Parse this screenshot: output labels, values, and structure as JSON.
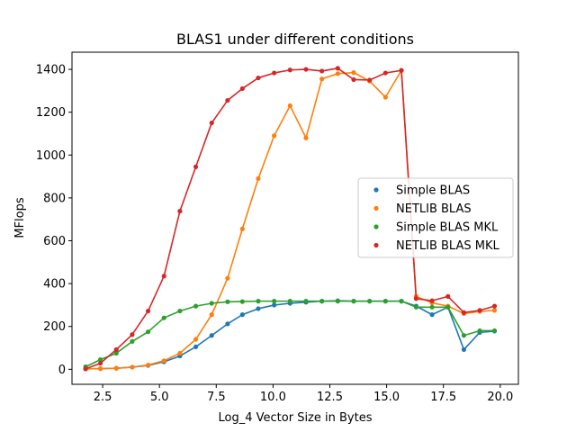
{
  "chart_data": {
    "type": "line",
    "title": "BLAS1 under different conditions",
    "xlabel": "Log_4 Vector Size in Bytes",
    "ylabel": "MFlops",
    "xlim": [
      1.15,
      20.8
    ],
    "ylim": [
      -70,
      1480
    ],
    "xticks": [
      2.5,
      5.0,
      7.5,
      10.0,
      12.5,
      15.0,
      17.5,
      20.0
    ],
    "xtick_labels": [
      "2.5",
      "5.0",
      "7.5",
      "10.0",
      "12.5",
      "15.0",
      "17.5",
      "20.0"
    ],
    "yticks": [
      0,
      200,
      400,
      600,
      800,
      1000,
      1200,
      1400
    ],
    "ytick_labels": [
      "0",
      "200",
      "400",
      "600",
      "800",
      "1000",
      "1200",
      "1400"
    ],
    "grid": false,
    "legend_position": "center-right",
    "x": [
      1.75,
      2.4,
      3.1,
      3.8,
      4.5,
      5.2,
      5.9,
      6.6,
      7.3,
      8.0,
      8.65,
      9.35,
      10.05,
      10.75,
      11.45,
      12.15,
      12.85,
      13.55,
      14.25,
      14.95,
      15.65,
      16.3,
      17.0,
      17.7,
      18.4,
      19.1,
      19.75
    ],
    "series": [
      {
        "name": "Simple BLAS",
        "color": "#1f77b4",
        "values": [
          2,
          3,
          5,
          10,
          18,
          35,
          62,
          105,
          158,
          212,
          255,
          283,
          300,
          308,
          313,
          318,
          320,
          318,
          318,
          318,
          318,
          295,
          255,
          290,
          92,
          172,
          178
        ]
      },
      {
        "name": "NETLIB BLAS",
        "color": "#ff7f0e",
        "values": [
          2,
          3,
          5,
          10,
          20,
          40,
          75,
          140,
          255,
          425,
          655,
          890,
          1090,
          1230,
          1080,
          1355,
          1380,
          1385,
          1345,
          1270,
          1395,
          340,
          310,
          295,
          260,
          270,
          275
        ]
      },
      {
        "name": "Simple BLAS MKL",
        "color": "#2ca02c",
        "values": [
          12,
          45,
          75,
          130,
          175,
          240,
          272,
          295,
          308,
          315,
          316,
          318,
          318,
          318,
          318,
          318,
          318,
          318,
          318,
          318,
          318,
          290,
          290,
          290,
          158,
          180,
          180
        ]
      },
      {
        "name": "NETLIB BLAS MKL",
        "color": "#d62728",
        "values": [
          2,
          28,
          92,
          162,
          272,
          435,
          738,
          945,
          1150,
          1255,
          1310,
          1360,
          1383,
          1397,
          1400,
          1392,
          1405,
          1352,
          1350,
          1383,
          1395,
          330,
          320,
          340,
          265,
          275,
          295
        ]
      }
    ]
  }
}
